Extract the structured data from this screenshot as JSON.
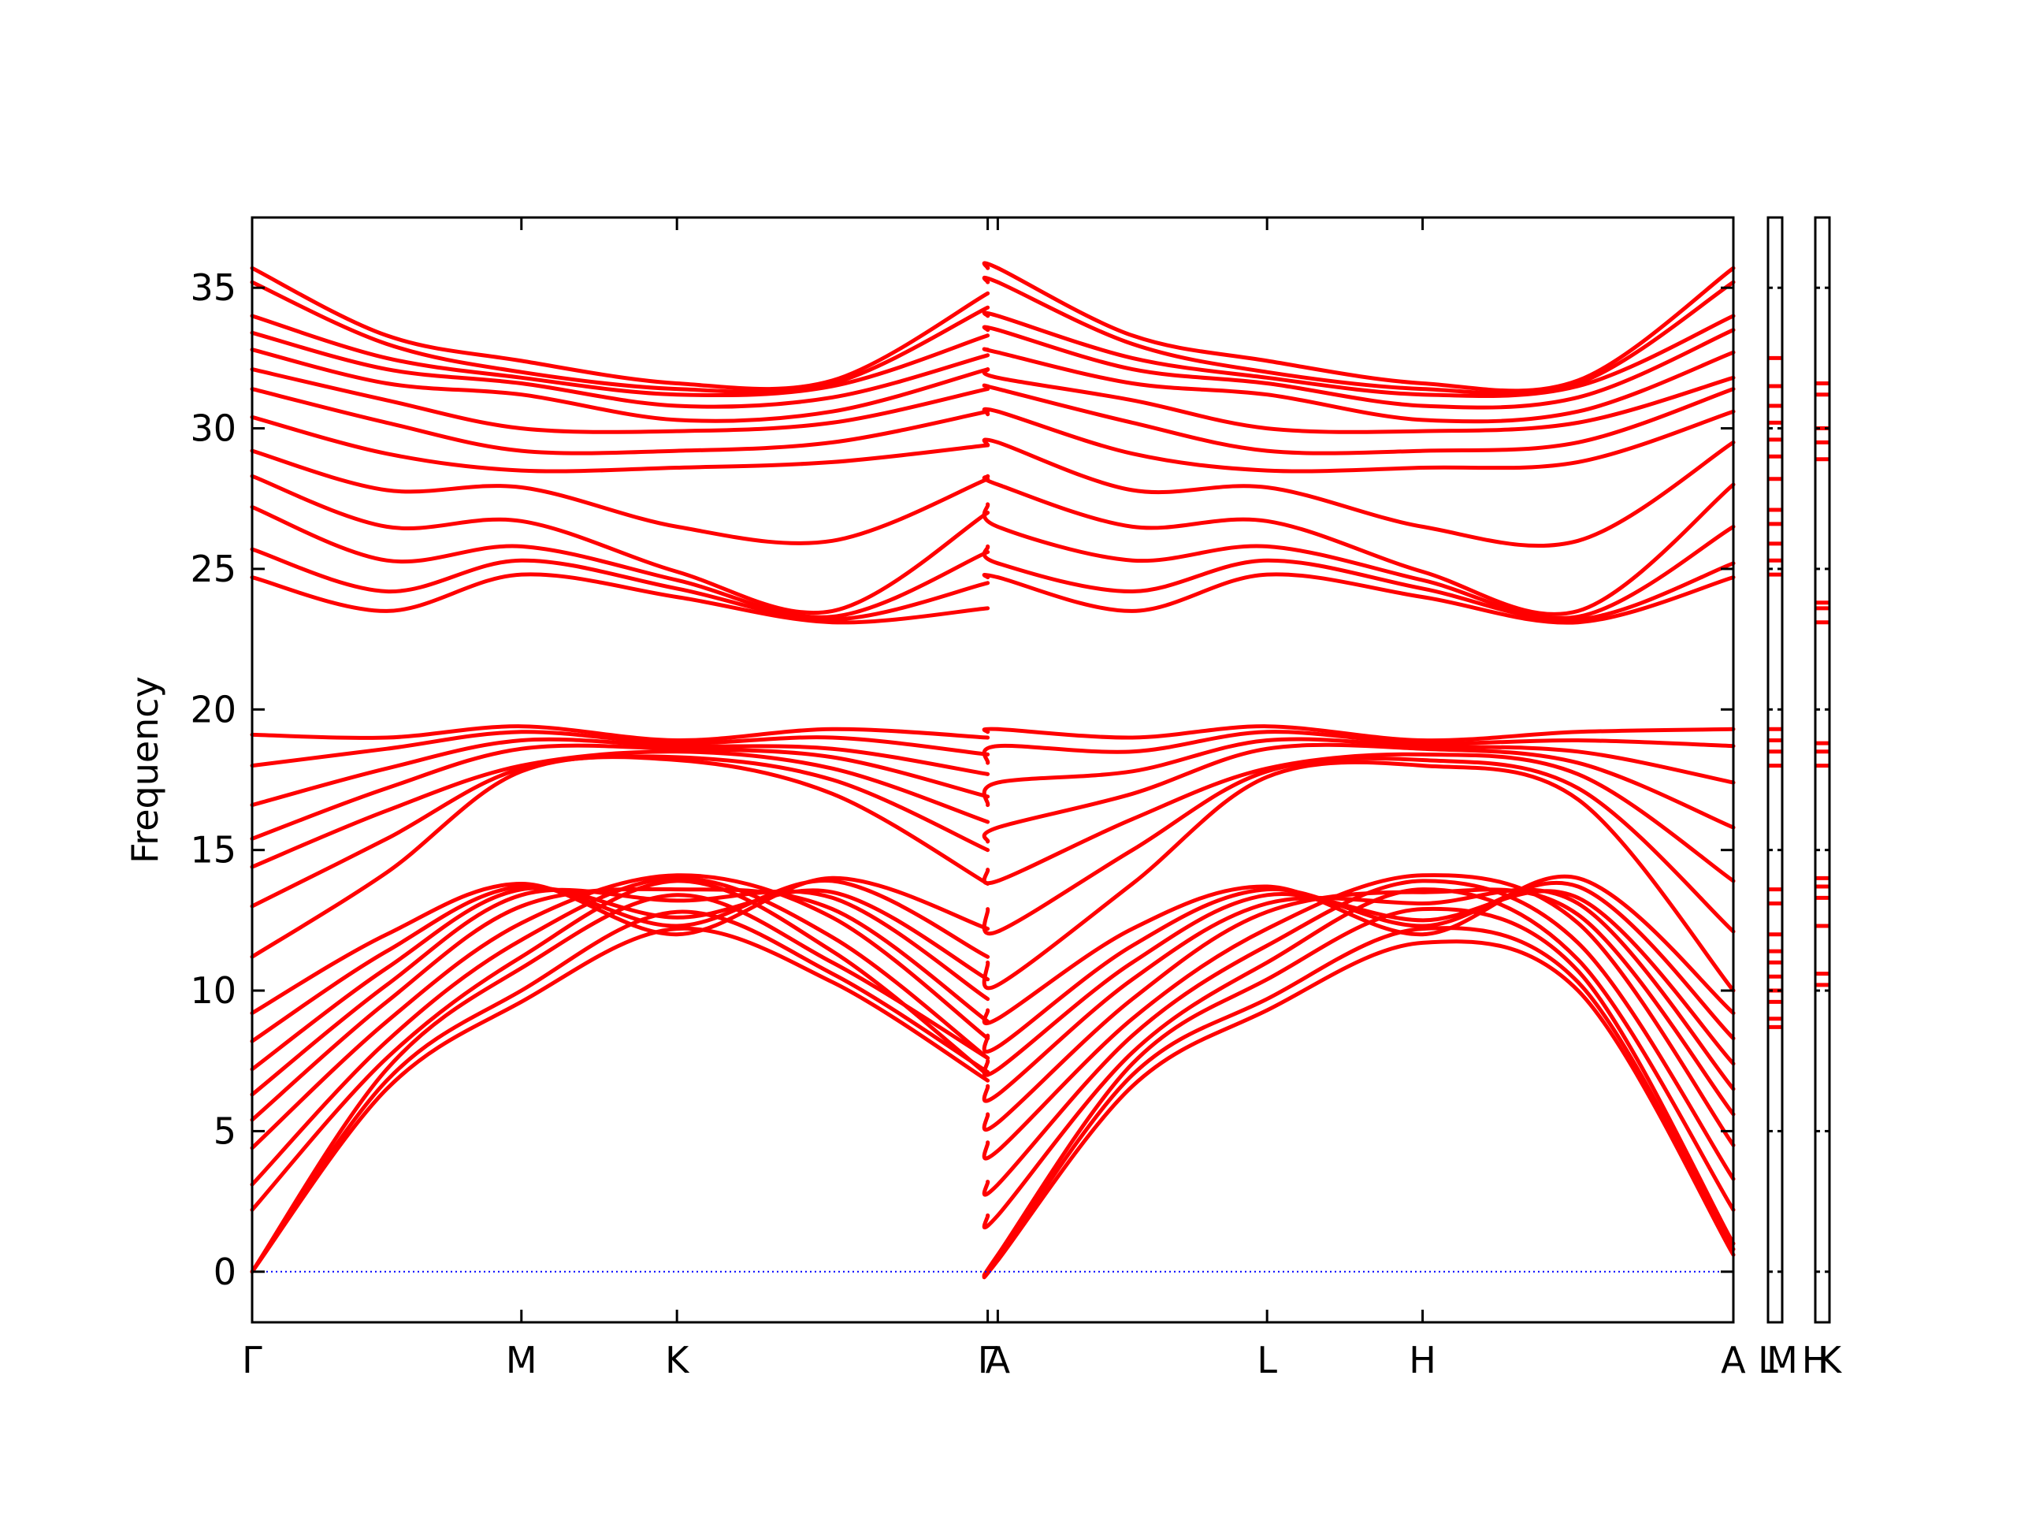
{
  "chart_data": {
    "type": "line",
    "ylabel": "Frequency",
    "ylim": [
      -1.8,
      37.5
    ],
    "y_ticks": [
      0,
      5,
      10,
      15,
      20,
      25,
      30,
      35
    ],
    "y_tick_labels": [
      "0",
      "5",
      "10",
      "15",
      "20",
      "25",
      "30",
      "35"
    ],
    "grid": false,
    "legend": "none",
    "colors": {
      "bands": "#ff0000",
      "zero_line": "#0000ff",
      "axes": "#000000"
    },
    "path_points": [
      {
        "label": "Γ",
        "x": 0.0
      },
      {
        "label": "M",
        "x": 0.3636
      },
      {
        "label": "K",
        "x": 0.5736
      },
      {
        "label": "Γ",
        "x": 0.9932
      },
      {
        "label": "A",
        "x": 1.0068
      },
      {
        "label": "L",
        "x": 1.3704
      },
      {
        "label": "H",
        "x": 1.5804
      },
      {
        "label": "A",
        "x": 2.0
      }
    ],
    "side_panels": [
      {
        "labels": [
          "L",
          "M"
        ],
        "bands": [
          32.5,
          31.5,
          30.8,
          30.2,
          29.6,
          29.0,
          28.2,
          27.1,
          26.6,
          25.9,
          25.3,
          24.8,
          19.3,
          18.9,
          18.5,
          18.0,
          13.6,
          13.1,
          12.0,
          11.4,
          11.0,
          10.5,
          10.0,
          9.6,
          9.0,
          8.7
        ]
      },
      {
        "labels": [
          "H",
          "K"
        ],
        "bands": [
          31.6,
          31.2,
          30.0,
          29.5,
          28.9,
          23.8,
          23.6,
          23.1,
          18.8,
          18.5,
          18.0,
          14.0,
          13.7,
          13.3,
          12.3,
          10.6,
          10.2
        ]
      }
    ],
    "series": [
      {
        "values": [
          0.0,
          6.5,
          9.6,
          12.2,
          10.3,
          6.8,
          0.0,
          0.4,
          6.6,
          9.3,
          11.7,
          10.0,
          0.6
        ]
      },
      {
        "values": [
          0.0,
          6.8,
          10.0,
          12.8,
          10.6,
          7.1,
          0.0,
          0.5,
          7.0,
          9.7,
          12.2,
          10.3,
          0.8
        ]
      },
      {
        "values": [
          0.0,
          7.2,
          10.8,
          13.4,
          11.0,
          7.6,
          0.0,
          0.6,
          7.4,
          10.4,
          12.9,
          10.7,
          1.0
        ]
      },
      {
        "values": [
          2.2,
          7.6,
          11.2,
          13.9,
          11.4,
          7.0,
          2.0,
          2.0,
          7.8,
          11.0,
          13.6,
          11.1,
          2.2
        ]
      },
      {
        "values": [
          3.1,
          8.2,
          11.8,
          14.0,
          11.9,
          7.6,
          3.2,
          3.1,
          8.4,
          11.6,
          13.9,
          11.7,
          3.3
        ]
      },
      {
        "values": [
          4.4,
          8.9,
          12.4,
          14.1,
          12.6,
          8.3,
          4.6,
          4.3,
          9.0,
          12.2,
          14.1,
          12.4,
          4.5
        ]
      },
      {
        "values": [
          5.4,
          9.6,
          13.0,
          13.6,
          12.9,
          8.9,
          5.6,
          5.3,
          9.7,
          12.8,
          13.5,
          12.7,
          5.6
        ]
      },
      {
        "values": [
          6.3,
          10.2,
          13.4,
          13.2,
          13.3,
          9.7,
          6.6,
          6.3,
          10.4,
          13.1,
          13.1,
          13.1,
          6.5
        ]
      },
      {
        "values": [
          7.2,
          10.8,
          13.6,
          12.6,
          13.5,
          10.4,
          7.5,
          7.2,
          11.0,
          13.4,
          12.5,
          13.3,
          7.4
        ]
      },
      {
        "values": [
          8.2,
          11.4,
          13.7,
          12.3,
          13.9,
          11.2,
          8.4,
          8.0,
          11.6,
          13.6,
          12.3,
          13.7,
          8.3
        ]
      },
      {
        "values": [
          9.2,
          12.0,
          13.8,
          12.0,
          14.0,
          12.2,
          9.3,
          9.0,
          12.2,
          13.7,
          12.0,
          14.0,
          9.2
        ]
      },
      {
        "values": [
          11.2,
          14.2,
          17.8,
          18.2,
          17.0,
          13.8,
          11.0,
          10.2,
          13.8,
          17.6,
          18.0,
          16.8,
          10.0
        ]
      },
      {
        "values": [
          13.0,
          15.4,
          17.9,
          18.3,
          17.5,
          15.0,
          12.9,
          12.1,
          15.0,
          17.8,
          18.2,
          17.2,
          12.1
        ]
      },
      {
        "values": [
          14.4,
          16.4,
          18.0,
          18.5,
          17.9,
          16.0,
          14.3,
          13.9,
          16.1,
          17.9,
          18.4,
          17.7,
          13.9
        ]
      },
      {
        "values": [
          15.4,
          17.2,
          18.6,
          18.6,
          18.3,
          16.9,
          15.3,
          15.8,
          17.0,
          18.6,
          18.6,
          18.1,
          15.8
        ]
      },
      {
        "values": [
          16.6,
          17.9,
          18.9,
          18.7,
          18.6,
          17.7,
          16.6,
          17.4,
          17.8,
          18.9,
          18.7,
          18.5,
          17.4
        ]
      },
      {
        "values": [
          18.0,
          18.6,
          19.2,
          18.8,
          19.0,
          18.4,
          18.1,
          18.7,
          18.5,
          19.2,
          18.8,
          18.9,
          18.7
        ]
      },
      {
        "values": [
          19.1,
          19.0,
          19.4,
          18.9,
          19.3,
          19.0,
          19.2,
          19.3,
          19.0,
          19.4,
          18.9,
          19.2,
          19.3
        ]
      },
      {
        "values": [
          24.7,
          23.5,
          24.8,
          24.0,
          23.1,
          23.6,
          24.7,
          24.7,
          23.5,
          24.8,
          24.0,
          23.1,
          24.7
        ]
      },
      {
        "values": [
          25.7,
          24.2,
          25.3,
          24.3,
          23.2,
          24.5,
          25.8,
          25.2,
          24.2,
          25.3,
          24.3,
          23.2,
          25.2
        ]
      },
      {
        "values": [
          27.2,
          25.3,
          25.8,
          24.6,
          23.3,
          25.6,
          27.3,
          26.5,
          25.3,
          25.8,
          24.6,
          23.3,
          26.5
        ]
      },
      {
        "values": [
          28.3,
          26.5,
          26.7,
          24.9,
          23.5,
          27.0,
          28.3,
          28.0,
          26.5,
          26.7,
          24.9,
          23.5,
          28.0
        ]
      },
      {
        "values": [
          29.2,
          27.8,
          27.9,
          26.5,
          26.0,
          28.2,
          29.4,
          29.5,
          27.8,
          27.9,
          26.5,
          26.0,
          29.5
        ]
      },
      {
        "values": [
          30.4,
          29.1,
          28.5,
          28.6,
          28.8,
          29.4,
          30.5,
          30.6,
          29.1,
          28.5,
          28.6,
          28.8,
          30.6
        ]
      },
      {
        "values": [
          31.4,
          30.2,
          29.2,
          29.2,
          29.5,
          30.6,
          31.5,
          31.4,
          30.2,
          29.2,
          29.2,
          29.5,
          31.4
        ]
      },
      {
        "values": [
          32.1,
          31.0,
          30.0,
          29.9,
          30.2,
          31.4,
          32.1,
          31.8,
          31.0,
          30.0,
          29.9,
          30.2,
          31.8
        ]
      },
      {
        "values": [
          32.8,
          31.6,
          31.2,
          30.3,
          30.6,
          32.1,
          32.8,
          32.7,
          31.6,
          31.2,
          30.3,
          30.6,
          32.7
        ]
      },
      {
        "values": [
          33.4,
          32.1,
          31.6,
          30.8,
          31.1,
          32.6,
          33.5,
          33.5,
          32.1,
          31.6,
          30.8,
          31.1,
          33.5
        ]
      },
      {
        "values": [
          34.0,
          32.5,
          31.8,
          31.2,
          31.5,
          33.3,
          34.0,
          34.0,
          32.5,
          31.8,
          31.2,
          31.5,
          34.0
        ]
      },
      {
        "values": [
          35.2,
          33.0,
          32.0,
          31.4,
          31.6,
          34.3,
          35.2,
          35.2,
          33.0,
          32.0,
          31.4,
          31.6,
          35.2
        ]
      },
      {
        "values": [
          35.7,
          33.3,
          32.4,
          31.6,
          31.7,
          34.8,
          35.7,
          35.7,
          33.3,
          32.4,
          31.6,
          31.7,
          35.7
        ]
      }
    ]
  }
}
